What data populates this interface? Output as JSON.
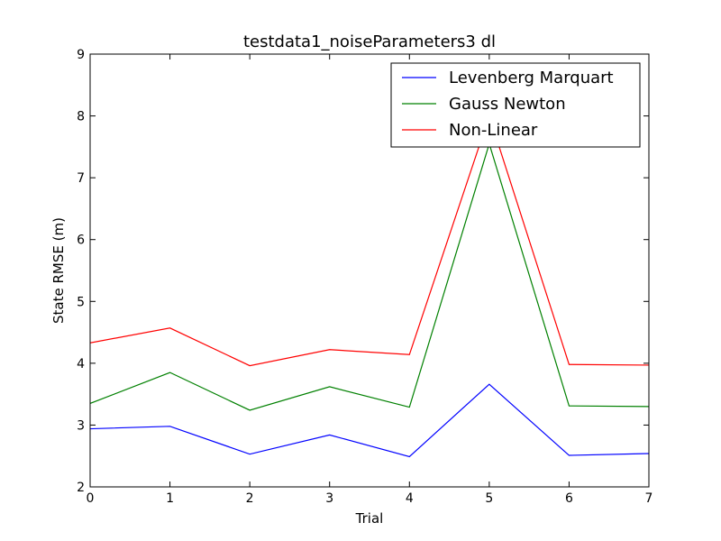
{
  "chart_data": {
    "type": "line",
    "title": "testdata1_noiseParameters3 dl",
    "xlabel": "Trial",
    "ylabel": "State RMSE (m)",
    "xlim": [
      0,
      7
    ],
    "ylim": [
      2,
      9
    ],
    "x": [
      0,
      1,
      2,
      3,
      4,
      5,
      6,
      7
    ],
    "xticks": [
      "0",
      "1",
      "2",
      "3",
      "4",
      "5",
      "6",
      "7"
    ],
    "yticks": [
      "2",
      "3",
      "4",
      "5",
      "6",
      "7",
      "8",
      "9"
    ],
    "grid": false,
    "legend_position": "top-right",
    "series": [
      {
        "name": "Levenberg Marquart",
        "color": "#0000ff",
        "values": [
          2.94,
          2.98,
          2.53,
          2.84,
          2.49,
          3.66,
          2.51,
          2.54
        ]
      },
      {
        "name": "Gauss Newton",
        "color": "#008000",
        "values": [
          3.35,
          3.85,
          3.24,
          3.62,
          3.29,
          7.55,
          3.31,
          3.3
        ]
      },
      {
        "name": "Non-Linear",
        "color": "#ff0000",
        "values": [
          4.33,
          4.57,
          3.96,
          4.22,
          4.14,
          8.0,
          3.98,
          3.97
        ]
      }
    ]
  }
}
